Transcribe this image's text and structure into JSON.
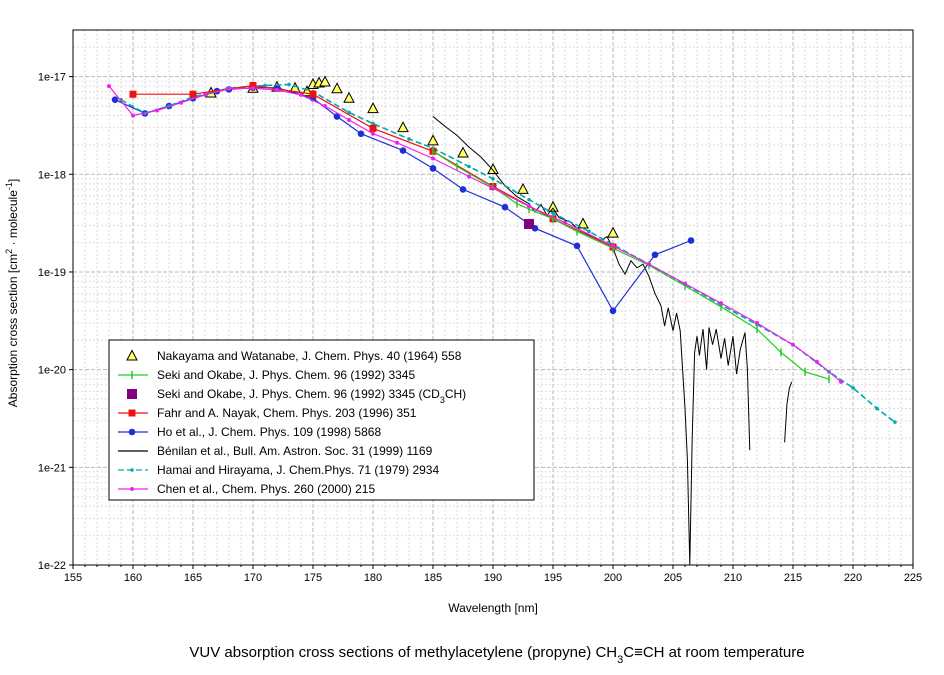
{
  "chart_data": {
    "type": "line",
    "title": "",
    "caption": {
      "main": "VUV absorption cross sections of methylacetylene (propyne) CH",
      "sub1": "3",
      "mid": "C≡CH at room temperature"
    },
    "xlabel": "Wavelength [nm]",
    "ylabel": {
      "p1": "Absorption cross section [cm",
      "s1": "2",
      "p2": " · molecule",
      "s2": "-1",
      "p3": "]"
    },
    "x_scale": "linear",
    "y_scale": "log",
    "xlim": [
      155,
      225
    ],
    "ylim": [
      1e-22,
      3e-17
    ],
    "x_ticks": [
      "155",
      "160",
      "165",
      "170",
      "175",
      "180",
      "185",
      "190",
      "195",
      "200",
      "205",
      "210",
      "215",
      "220",
      "225"
    ],
    "y_ticks": [
      {
        "value": 1e-17,
        "label": "1e-17"
      },
      {
        "value": 1e-18,
        "label": "1e-18"
      },
      {
        "value": 1e-19,
        "label": "1e-19"
      },
      {
        "value": 1e-20,
        "label": "1e-20"
      },
      {
        "value": 1e-21,
        "label": "1e-21"
      },
      {
        "value": 1e-22,
        "label": "1e-22"
      }
    ],
    "grid": true,
    "legend_position": "bottom-left",
    "series": [
      {
        "name": "Nakayama and Watanabe, J. Chem. Phys. 40 (1964) 558",
        "legend": {
          "text": "Nakayama and Watanabe, J. Chem. Phys. 40 (1964) 558"
        },
        "color": "#000000",
        "fill": "#ffff66",
        "marker": "triangle",
        "line": false,
        "x": [
          166.5,
          170,
          172,
          173.5,
          174.5,
          175,
          175.5,
          176,
          177,
          178,
          180,
          182.5,
          185,
          187.5,
          190,
          192.5,
          195,
          197.5,
          200
        ],
        "y": [
          6.8e-18,
          7.6e-18,
          7.8e-18,
          7.6e-18,
          7e-18,
          8.3e-18,
          8.6e-18,
          8.8e-18,
          7.5e-18,
          6e-18,
          4.7e-18,
          3e-18,
          2.2e-18,
          1.65e-18,
          1.12e-18,
          7e-19,
          4.6e-19,
          3.1e-19,
          2.5e-19
        ]
      },
      {
        "name": "Seki and Okabe, J. Phys. Chem. 96 (1992) 3345",
        "legend": {
          "text": "Seki and Okabe, J. Phys. Chem. 96 (1992) 3345"
        },
        "color": "#22cc22",
        "marker": "tick",
        "line": true,
        "x": [
          185,
          187,
          190,
          192,
          193,
          195,
          197,
          200,
          203,
          206,
          209,
          212,
          214,
          216,
          218
        ],
        "y": [
          1.72e-18,
          1.2e-18,
          7.4e-19,
          5e-19,
          4.4e-19,
          3.5e-19,
          2.6e-19,
          1.75e-19,
          1.17e-19,
          7.2e-20,
          4.4e-20,
          2.6e-20,
          1.5e-20,
          9.5e-21,
          8e-21
        ]
      },
      {
        "name": "Seki and Okabe (CD3CH)",
        "legend": {
          "text": "Seki and Okabe, J. Phys. Chem. 96 (1992) 3345 (CD",
          "sub": "3",
          "tail": "CH)"
        },
        "color": "#800080",
        "marker": "square-big",
        "line": false,
        "x": [
          193
        ],
        "y": [
          3.1e-19
        ]
      },
      {
        "name": "Fahr and A. Nayak, Chem. Phys. 203 (1996) 351",
        "legend": {
          "text": "Fahr and A. Nayak, Chem. Phys. 203 (1996) 351"
        },
        "color": "#ee1111",
        "marker": "square",
        "line": true,
        "x": [
          160,
          165,
          170,
          175,
          180,
          185,
          190,
          195,
          200
        ],
        "y": [
          6.6e-18,
          6.6e-18,
          8.1e-18,
          6.6e-18,
          2.95e-18,
          1.72e-18,
          7.5e-19,
          3.5e-19,
          1.8e-19
        ]
      },
      {
        "name": "Ho et al., J. Chem. Phys. 109 (1998) 5868",
        "legend": {
          "text": "Ho et al., J. Chem. Phys. 109 (1998) 5868"
        },
        "color": "#1f2fd8",
        "marker": "circle",
        "line": true,
        "x": [
          158.5,
          161,
          163,
          165,
          167,
          168,
          170,
          172,
          175,
          177,
          179,
          182.5,
          185,
          187.5,
          191,
          193.5,
          197,
          200,
          203.5,
          206.5
        ],
        "y": [
          5.8e-18,
          4.2e-18,
          5e-18,
          6e-18,
          7.1e-18,
          7.4e-18,
          7.7e-18,
          7.7e-18,
          6e-18,
          3.9e-18,
          2.6e-18,
          1.75e-18,
          1.15e-18,
          7e-19,
          4.6e-19,
          2.8e-19,
          1.85e-19,
          4e-20,
          1.5e-19,
          2.1e-19
        ]
      },
      {
        "name": "Bénilan et al., Bull. Am. Astron. Soc. 31 (1999) 1169",
        "legend": {
          "text": "Bénilan et al., Bull. Am. Astron. Soc. 31 (1999) 1169"
        },
        "color": "#000000",
        "marker": "none",
        "line": true,
        "segments": [
          {
            "x": [
              185,
              186,
              187,
              188,
              189,
              190,
              191,
              192,
              193,
              193.5,
              194,
              194.5,
              195,
              195.5,
              196,
              196.5,
              197,
              198,
              199,
              199.5,
              200,
              200.5,
              201,
              201.5,
              202,
              202.5,
              203,
              203.5,
              204,
              204.3,
              204.6,
              205,
              205.3,
              205.6,
              206,
              206.2,
              206.4,
              206.6,
              206.8,
              207,
              207.2,
              207.5,
              207.8,
              208,
              208.3,
              208.6,
              209,
              209.3,
              209.6,
              210,
              210.3,
              210.6,
              211,
              211.2,
              211.4
            ],
            "y": [
              3.9e-18,
              3.1e-18,
              2.5e-18,
              1.9e-18,
              1.5e-18,
              1.1e-18,
              7.6e-19,
              5.9e-19,
              5e-19,
              4.1e-19,
              4.9e-19,
              3.8e-19,
              4.5e-19,
              3.6e-19,
              3.4e-19,
              3.2e-19,
              2.8e-19,
              2.4e-19,
              2.1e-19,
              2.3e-19,
              1.75e-19,
              1.2e-19,
              9.5e-20,
              1.3e-19,
              1.1e-19,
              1.2e-19,
              9e-20,
              6e-20,
              4.5e-20,
              2.8e-20,
              4.3e-20,
              2.5e-20,
              3.8e-20,
              2.5e-20,
              4e-21,
              1.2e-21,
              1e-22,
              2e-21,
              1.5e-20,
              2.2e-20,
              1.4e-20,
              2.6e-20,
              1e-20,
              2.7e-20,
              1.8e-20,
              2.6e-20,
              1.3e-20,
              2.1e-20,
              1.1e-20,
              2.2e-20,
              9e-21,
              1.6e-20,
              2.4e-20,
              1e-20,
              1.5e-21
            ]
          },
          {
            "x": [
              214.3,
              214.5,
              214.7,
              214.9
            ],
            "y": [
              1.8e-21,
              4.5e-21,
              6.5e-21,
              7.5e-21
            ]
          }
        ]
      },
      {
        "name": "Hamai and Hirayama, J. Chem.Phys. 71 (1979) 2934",
        "legend": {
          "text": "Hamai and Hirayama, J. Chem.Phys. 71 (1979) 2934"
        },
        "color": "#00aaaa",
        "marker": "dot",
        "line": true,
        "dashed": true,
        "x": [
          159,
          161,
          163,
          165,
          168,
          171,
          173,
          175,
          178,
          180,
          183,
          185,
          188,
          190,
          193,
          195,
          198,
          200,
          203,
          206,
          209,
          212,
          215,
          218,
          220,
          222,
          223.5
        ],
        "y": [
          5.8e-18,
          4.2e-18,
          5e-18,
          6.2e-18,
          7.6e-18,
          8.1e-18,
          8.3e-18,
          7e-18,
          4.3e-18,
          3.3e-18,
          2.3e-18,
          1.85e-18,
          1.2e-18,
          9e-19,
          5.5e-19,
          4e-19,
          2.6e-19,
          1.9e-19,
          1.2e-19,
          7.5e-20,
          4.6e-20,
          2.9e-20,
          1.8e-20,
          9.5e-21,
          6.5e-21,
          4e-21,
          2.9e-21
        ]
      },
      {
        "name": "Chen et al., Chem. Phys. 260 (2000) 215",
        "legend": {
          "text": "Chen et al., Chem. Phys. 260 (2000) 215"
        },
        "color": "#ee22ee",
        "marker": "smalldot",
        "line": true,
        "x": [
          158,
          160,
          162,
          164,
          166,
          168,
          170,
          172,
          174,
          176,
          178,
          180,
          182,
          185,
          188,
          190,
          193,
          196,
          200,
          203,
          206,
          209,
          212,
          215,
          217,
          219
        ],
        "y": [
          8e-18,
          4e-18,
          4.5e-18,
          5.4e-18,
          6.5e-18,
          7.5e-18,
          7.6e-18,
          7.3e-18,
          6.5e-18,
          5e-18,
          3.6e-18,
          2.6e-18,
          2.1e-18,
          1.45e-18,
          9.5e-19,
          7.2e-19,
          4.7e-19,
          3.2e-19,
          1.85e-19,
          1.2e-19,
          7.6e-20,
          4.8e-20,
          3e-20,
          1.8e-20,
          1.2e-20,
          7.5e-21
        ]
      }
    ]
  }
}
